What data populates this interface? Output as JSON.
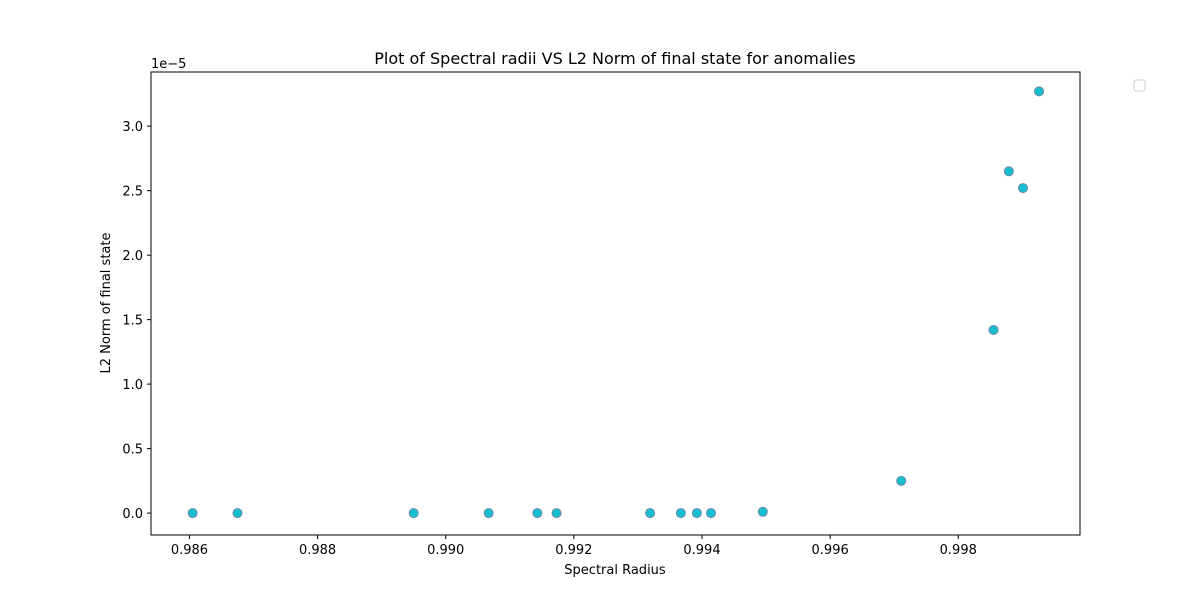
{
  "chart_data": {
    "type": "scatter",
    "title": "Plot of Spectral radii VS L2 Norm of final state for anomalies",
    "xlabel": "Spectral Radius",
    "ylabel": "L2 Norm of final state",
    "y_offset_label": "1e−5",
    "xlim": [
      0.9854,
      0.9999
    ],
    "ylim": [
      -0.17,
      3.42
    ],
    "x_ticks": [
      0.986,
      0.988,
      0.99,
      0.992,
      0.994,
      0.996,
      0.998
    ],
    "x_tick_labels": [
      "0.986",
      "0.988",
      "0.990",
      "0.992",
      "0.994",
      "0.996",
      "0.998"
    ],
    "y_ticks": [
      0.0,
      0.5,
      1.0,
      1.5,
      2.0,
      2.5,
      3.0
    ],
    "y_tick_labels": [
      "0.0",
      "0.5",
      "1.0",
      "1.5",
      "2.0",
      "2.5",
      "3.0"
    ],
    "grid": false,
    "legend": "upper-right-outside",
    "marker_color": "#17becf",
    "marker_edge_color": "#7a7fa3",
    "series": [
      {
        "x": [
          0.98605,
          0.98675,
          0.9895,
          0.99067,
          0.99143,
          0.99173,
          0.99319,
          0.99367,
          0.99392,
          0.99414,
          0.99495,
          0.99711,
          0.99855,
          0.99879,
          0.99901,
          0.99926
        ],
        "y": [
          0.0,
          0.0,
          0.0,
          0.0,
          0.0,
          0.0,
          0.0,
          0.0,
          0.0,
          0.0,
          0.01,
          0.25,
          1.42,
          2.65,
          2.52,
          3.27
        ]
      }
    ]
  }
}
